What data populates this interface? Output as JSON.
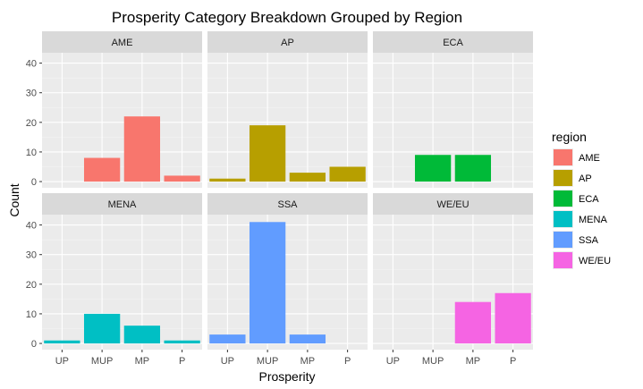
{
  "chart_data": {
    "type": "bar",
    "title": "Prosperity Category Breakdown Grouped by Region",
    "xlabel": "Prosperity",
    "ylabel": "Count",
    "categories": [
      "UP",
      "MUP",
      "MP",
      "P"
    ],
    "y_ticks": [
      0,
      10,
      20,
      30,
      40
    ],
    "ylim": [
      -2.1,
      43.5
    ],
    "grid": true,
    "legend": {
      "title": "region",
      "placement": "right",
      "items": [
        {
          "name": "AME",
          "color": "#F8766D"
        },
        {
          "name": "AP",
          "color": "#B79F00"
        },
        {
          "name": "ECA",
          "color": "#00BA38"
        },
        {
          "name": "MENA",
          "color": "#00BFC4"
        },
        {
          "name": "SSA",
          "color": "#619CFF"
        },
        {
          "name": "WE/EU",
          "color": "#F564E3"
        }
      ]
    },
    "series": [
      {
        "name": "AME",
        "color": "#F8766D",
        "values": [
          0,
          8,
          22,
          2
        ]
      },
      {
        "name": "AP",
        "color": "#B79F00",
        "values": [
          1,
          19,
          3,
          5
        ]
      },
      {
        "name": "ECA",
        "color": "#00BA38",
        "values": [
          0,
          9,
          9,
          0
        ]
      },
      {
        "name": "MENA",
        "color": "#00BFC4",
        "values": [
          1,
          10,
          6,
          1
        ]
      },
      {
        "name": "SSA",
        "color": "#619CFF",
        "values": [
          3,
          41,
          3,
          0
        ]
      },
      {
        "name": "WE/EU",
        "color": "#F564E3",
        "values": [
          0,
          0,
          14,
          17
        ]
      }
    ]
  }
}
